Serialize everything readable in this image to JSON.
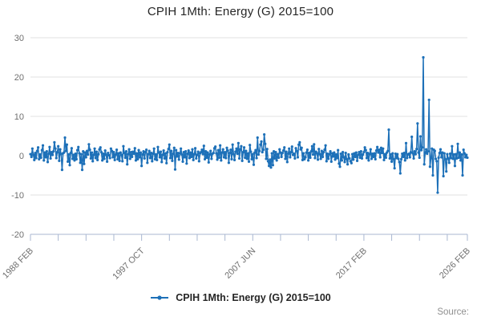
{
  "title": "CPIH 1Mth: Energy (G) 2015=100",
  "source_label": "Source:",
  "legend": {
    "label": "CPIH 1Mth: Energy (G) 2015=100"
  },
  "colors": {
    "line": "#1d70b8",
    "grid": "#e2e2e2",
    "axis": "#a9b7d1",
    "tick_text": "#6f6f6f",
    "title_text": "#262626",
    "source_text": "#8f8f8f"
  },
  "chart_data": {
    "type": "line",
    "title": "CPIH 1Mth: Energy (G) 2015=100",
    "xlabel": "",
    "ylabel": "",
    "x_unit": "month",
    "x_start": "1988 FEB",
    "x_end": "2026 FEB",
    "ylim": [
      -20,
      30
    ],
    "y_ticks": [
      30,
      20,
      10,
      0,
      -10,
      -20
    ],
    "grid": true,
    "legend_position": "bottom",
    "x_labeled_ticks": [
      {
        "month_offset": 0,
        "label": "1988 FEB"
      },
      {
        "month_offset": 116,
        "label": "1997 OCT"
      },
      {
        "month_offset": 232,
        "label": "2007 JUN"
      },
      {
        "month_offset": 348,
        "label": "2017 FEB"
      },
      {
        "month_offset": 456,
        "label": "2026 FEB"
      }
    ],
    "x_minor_tick_month_offsets": [
      0,
      29,
      58,
      87,
      116,
      145,
      174,
      203,
      232,
      261,
      290,
      319,
      348,
      377,
      406,
      435,
      456
    ],
    "notable_points": [
      {
        "x": "2019 APR",
        "value": 6.6
      },
      {
        "x": "2021 OCT",
        "value": 8.2
      },
      {
        "x": "2022 APR",
        "value": 25.0
      },
      {
        "x": "2022 OCT",
        "value": 14.2
      },
      {
        "x": "2023 JUL",
        "value": -9.4
      },
      {
        "x": "2024 JAN",
        "value": -5.2
      }
    ],
    "values": [
      0.4,
      -0.3,
      1.8,
      0.2,
      -1.1,
      0.7,
      -0.6,
      1.2,
      2.1,
      -0.9,
      0.3,
      -0.5,
      1.4,
      2.6,
      -1.2,
      0.8,
      -0.4,
      1.1,
      -1.6,
      0.5,
      2.2,
      -0.7,
      0.9,
      0.2,
      1.1,
      3.4,
      1.8,
      -0.6,
      0.9,
      2.4,
      -1.3,
      1.6,
      0.4,
      -3.6,
      0.6,
      0.8,
      4.6,
      1.2,
      2.8,
      -1.5,
      0.3,
      -2.4,
      0.7,
      1.9,
      -0.8,
      0.2,
      -1.2,
      0.5,
      -0.9,
      1.4,
      2.2,
      0.6,
      -1.8,
      0.4,
      -3.6,
      1.1,
      -2.1,
      0.8,
      -0.4,
      1.2,
      0.3,
      2.9,
      1.5,
      -0.7,
      0.8,
      -1.4,
      0.2,
      1.8,
      -0.6,
      1.0,
      -1.1,
      0.4,
      1.6,
      2.1,
      0.9,
      -1.2,
      0.5,
      -0.8,
      1.3,
      0.2,
      -1.5,
      0.7,
      0.1,
      -0.6,
      1.8,
      1.2,
      -0.4,
      0.9,
      -1.1,
      0.3,
      1.5,
      -0.9,
      0.6,
      -1.3,
      0.8,
      0.2,
      -1.4,
      2.4,
      0.7,
      -0.5,
      1.1,
      -2.2,
      0.4,
      1.6,
      -0.8,
      0.9,
      -0.3,
      1.0,
      0.5,
      1.9,
      -1.2,
      0.6,
      -0.9,
      1.4,
      -0.4,
      0.8,
      -2.6,
      0.3,
      1.1,
      -0.7,
      0.9,
      1.5,
      -1.8,
      0.4,
      1.2,
      -0.6,
      0.7,
      -1.4,
      0.5,
      1.8,
      -0.9,
      0.3,
      -1.1,
      2.2,
      0.8,
      -0.4,
      1.0,
      -1.6,
      0.2,
      1.3,
      -0.7,
      0.6,
      -1.9,
      0.9,
      1.7,
      2.8,
      -0.6,
      1.2,
      -1.3,
      0.5,
      2.0,
      -3.5,
      1.4,
      -0.2,
      0.7,
      -1.0,
      0.6,
      1.8,
      0.3,
      -1.5,
      0.9,
      -0.4,
      1.1,
      -2.0,
      0.5,
      1.3,
      -0.6,
      0.8,
      -0.3,
      1.6,
      -1.1,
      0.4,
      1.9,
      -0.7,
      0.2,
      1.0,
      -1.4,
      0.6,
      0.9,
      1.5,
      0.4,
      2.5,
      -0.9,
      1.1,
      -0.5,
      0.8,
      -1.7,
      0.3,
      1.2,
      -0.8,
      0.5,
      0.7,
      1.9,
      2.3,
      0.6,
      -1.0,
      1.4,
      -0.5,
      2.6,
      -1.2,
      0.8,
      1.6,
      -0.4,
      0.9,
      -0.6,
      2.0,
      1.3,
      -1.8,
      0.7,
      1.5,
      -0.9,
      2.8,
      0.4,
      -1.1,
      1.0,
      1.8,
      0.5,
      3.2,
      -0.7,
      1.6,
      2.4,
      -1.3,
      0.9,
      2.1,
      -0.5,
      1.2,
      -0.8,
      0.6,
      -1.5,
      2.7,
      1.0,
      -0.9,
      0.4,
      -2.3,
      0.8,
      1.4,
      -0.6,
      4.6,
      0.3,
      1.2,
      2.8,
      3.6,
      0.9,
      1.5,
      5.4,
      3.0,
      -0.8,
      1.7,
      -1.4,
      -2.6,
      -1.0,
      -3.0,
      0.6,
      -2.4,
      1.1,
      -0.7,
      0.9,
      -1.2,
      0.4,
      -0.5,
      1.6,
      0.8,
      -0.3,
      0.7,
      1.3,
      2.1,
      -0.8,
      1.0,
      -1.6,
      0.5,
      1.8,
      -0.4,
      0.9,
      2.3,
      0.2,
      0.5,
      -0.7,
      1.9,
      1.2,
      -0.4,
      2.8,
      3.4,
      1.6,
      2.0,
      -1.1,
      0.6,
      -0.9,
      -0.4,
      0.8,
      1.5,
      -1.2,
      0.7,
      -0.5,
      1.1,
      2.4,
      0.3,
      2.9,
      -0.6,
      1.0,
      0.6,
      -1.0,
      1.7,
      0.4,
      -0.8,
      1.2,
      -0.3,
      0.9,
      1.5,
      2.6,
      -1.4,
      0.5,
      -0.8,
      0.4,
      1.1,
      -1.5,
      0.6,
      -0.2,
      0.8,
      -1.0,
      0.3,
      -0.6,
      1.4,
      -2.0,
      -2.8,
      0.5,
      -1.2,
      0.9,
      -0.4,
      -1.6,
      0.7,
      -0.9,
      -2.2,
      0.3,
      -0.7,
      -1.4,
      -1.9,
      0.4,
      -1.0,
      0.6,
      -0.3,
      0.8,
      -1.3,
      0.2,
      0.9,
      -0.5,
      1.1,
      -0.7,
      0.3,
      0.9,
      2.1,
      1.4,
      -0.6,
      0.7,
      -1.2,
      0.4,
      1.6,
      -0.8,
      0.5,
      -0.3,
      0.6,
      -0.9,
      1.3,
      2.2,
      0.8,
      1.5,
      -0.4,
      2.0,
      0.7,
      1.8,
      -1.1,
      0.4,
      -0.5,
      0.8,
      1.2,
      6.6,
      -0.7,
      0.3,
      -1.5,
      0.6,
      -0.9,
      -3.2,
      0.5,
      -0.6,
      0.4,
      -0.8,
      -1.6,
      -4.5,
      -0.9,
      0.5,
      -0.3,
      0.7,
      -1.2,
      3.2,
      -0.6,
      0.3,
      0.5,
      -0.4,
      0.9,
      4.8,
      0.6,
      -0.7,
      1.1,
      0.4,
      1.7,
      8.2,
      0.8,
      -0.5,
      4.9,
      1.4,
      2.1,
      25.0,
      -2.2,
      0.8,
      1.6,
      0.5,
      1.1,
      14.2,
      -2.8,
      -0.6,
      1.8,
      -5.0,
      1.5,
      1.2,
      -0.8,
      -1.4,
      -9.4,
      -0.5,
      0.7,
      1.6,
      -0.4,
      0.8,
      -5.2,
      0.6,
      -0.9,
      -4.0,
      0.4,
      -0.7,
      -1.8,
      0.5,
      -0.6,
      2.4,
      -0.8,
      0.3,
      -2.6,
      0.4,
      -0.7,
      3.0,
      -0.5,
      0.8,
      -1.2,
      0.3,
      -5.0,
      1.5,
      0.6,
      -0.4,
      0.2,
      -0.5
    ]
  }
}
